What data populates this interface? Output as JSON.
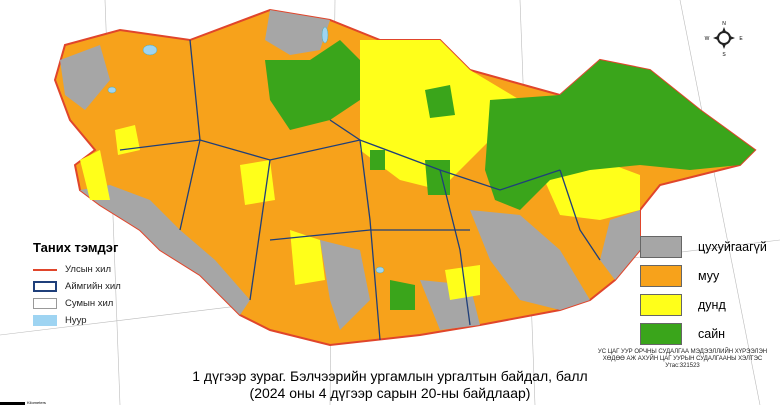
{
  "legend_left": {
    "title": "Таних тэмдэг",
    "items": [
      {
        "label": "Улсын хил",
        "color": "#e0452b",
        "type": "line"
      },
      {
        "label": "Аймгийн хил",
        "color": "#1f3f7a",
        "type": "box"
      },
      {
        "label": "Сумын хил",
        "color": "#999999",
        "type": "box"
      },
      {
        "label": "Нуур",
        "color": "#9ed4f2",
        "type": "fill"
      }
    ]
  },
  "legend_right": {
    "items": [
      {
        "label": "цухуйгаагүй",
        "color": "#a6a6a6"
      },
      {
        "label": "муу",
        "color": "#f7a21b"
      },
      {
        "label": "дунд",
        "color": "#ffff1a"
      },
      {
        "label": "сайн",
        "color": "#3aa51b"
      }
    ]
  },
  "compass": {
    "n": "N",
    "s": "S",
    "e": "E",
    "w": "W"
  },
  "caption": {
    "line1": "1 дүгээр зураг. Бэлчээрийн ургамлын ургалтын байдал, балл",
    "line2": "(2024 оны 4 дүгээр сарын 20-ны байдлаар)"
  },
  "institution": {
    "line1": "УС ЦАГ УУР ОРЧНЫ СУДАЛГАА МЭДЭЭЛЛИЙН ХҮРЭЭЛЭН",
    "line2": "ХӨДӨӨ АЖ АХУЙН ЦАГ УУРЫН СУДАЛГААНЫ ХЭЛТЭС",
    "line3": "Утас:321523"
  },
  "scale_label": "Kilometers"
}
